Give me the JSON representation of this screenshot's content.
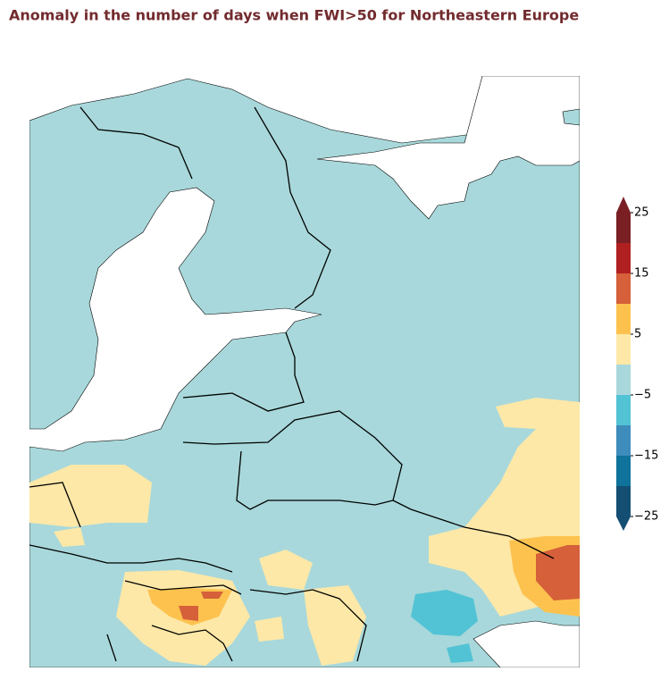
{
  "title": "Anomaly in the number of days when FWI>50 for Northeastern Europe",
  "colorbar": {
    "levels": [
      -25,
      -20,
      -15,
      -10,
      -5,
      0,
      5,
      10,
      15,
      20,
      25
    ],
    "colors": [
      "#154e73",
      "#0f739b",
      "#3d8cbb",
      "#52c3d4",
      "#a8d8db",
      "#fde8a8",
      "#fdc24e",
      "#d5603a",
      "#b02020",
      "#7a2024"
    ],
    "extend_under_color": "#154e73",
    "extend_over_color": "#7a2024",
    "ticks": [
      {
        "value": -25,
        "label": "−25"
      },
      {
        "value": -15,
        "label": "−15"
      },
      {
        "value": -5,
        "label": "−5"
      },
      5,
      15,
      25
    ]
  }
}
